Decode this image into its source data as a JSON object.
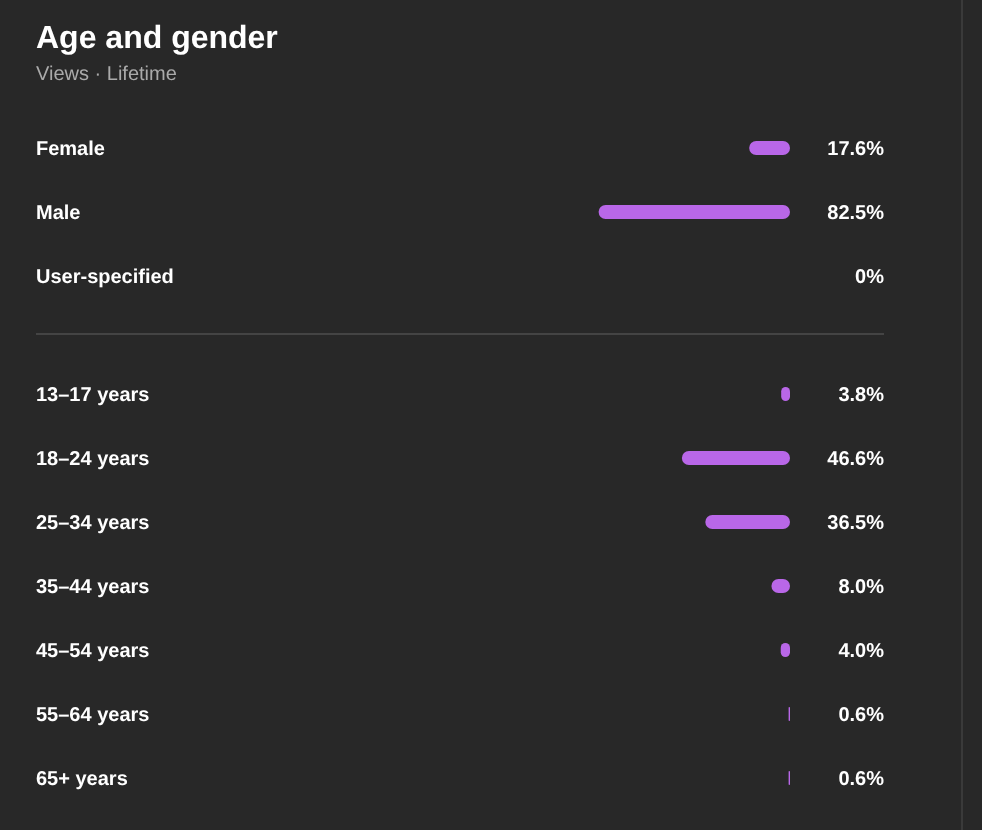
{
  "chart_data": [
    {
      "type": "bar",
      "title": "Age and gender",
      "subtitle": "Views · Lifetime",
      "orientation": "horizontal",
      "categories": [
        "Female",
        "Male",
        "User-specified"
      ],
      "values": [
        17.6,
        82.5,
        0
      ],
      "value_labels": [
        "17.6%",
        "82.5%",
        "0%"
      ],
      "color": "#b967e8",
      "tick_labels": "y"
    },
    {
      "type": "bar",
      "orientation": "horizontal",
      "categories": [
        "13–17 years",
        "18–24 years",
        "25–34 years",
        "35–44 years",
        "45–54 years",
        "55–64 years",
        "65+ years"
      ],
      "values": [
        3.8,
        46.6,
        36.5,
        8.0,
        4.0,
        0.6,
        0.6
      ],
      "value_labels": [
        "3.8%",
        "46.6%",
        "36.5%",
        "8.0%",
        "4.0%",
        "0.6%",
        "0.6%"
      ],
      "color": "#b967e8",
      "tick_labels": "y"
    }
  ]
}
